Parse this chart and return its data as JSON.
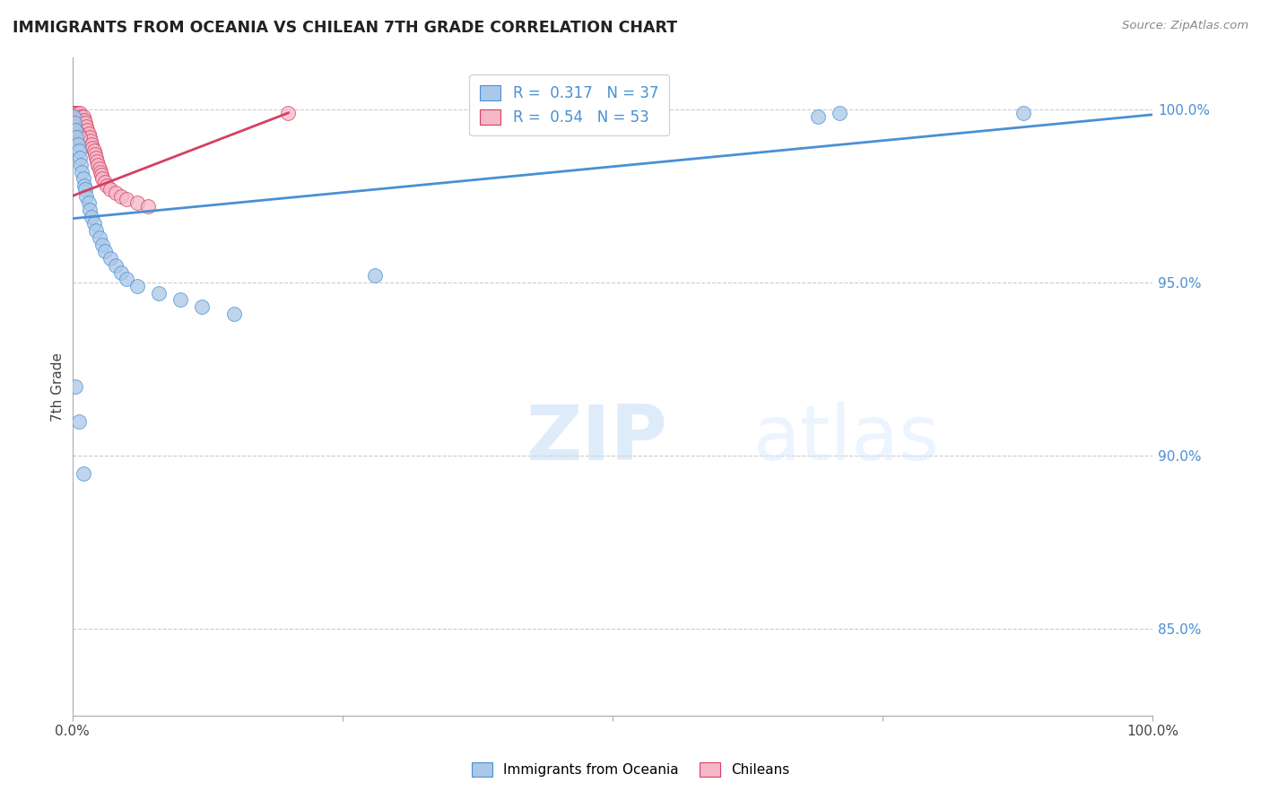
{
  "title": "IMMIGRANTS FROM OCEANIA VS CHILEAN 7TH GRADE CORRELATION CHART",
  "source": "Source: ZipAtlas.com",
  "ylabel": "7th Grade",
  "watermark_zip": "ZIP",
  "watermark_atlas": "atlas",
  "legend_label1": "Immigrants from Oceania",
  "legend_label2": "Chileans",
  "R1": 0.317,
  "N1": 37,
  "R2": 0.54,
  "N2": 53,
  "color1": "#aac8e8",
  "color2": "#f5b8c8",
  "line_color1": "#4a8fd4",
  "line_color2": "#d44060",
  "background": "#ffffff",
  "xlim": [
    0.0,
    1.0
  ],
  "ylim": [
    0.825,
    1.015
  ],
  "blue_x": [
    0.001,
    0.002,
    0.003,
    0.004,
    0.005,
    0.006,
    0.007,
    0.008,
    0.009,
    0.01,
    0.011,
    0.012,
    0.013,
    0.015,
    0.016,
    0.018,
    0.02,
    0.022,
    0.025,
    0.028,
    0.03,
    0.035,
    0.04,
    0.045,
    0.05,
    0.06,
    0.08,
    0.1,
    0.12,
    0.15,
    0.003,
    0.006,
    0.01,
    0.28,
    0.69,
    0.71,
    0.88
  ],
  "blue_y": [
    0.998,
    0.996,
    0.994,
    0.992,
    0.99,
    0.988,
    0.986,
    0.984,
    0.982,
    0.98,
    0.978,
    0.977,
    0.975,
    0.973,
    0.971,
    0.969,
    0.967,
    0.965,
    0.963,
    0.961,
    0.959,
    0.957,
    0.955,
    0.953,
    0.951,
    0.949,
    0.947,
    0.945,
    0.943,
    0.941,
    0.92,
    0.91,
    0.895,
    0.952,
    0.998,
    0.999,
    0.999
  ],
  "pink_x": [
    0.001,
    0.001,
    0.002,
    0.002,
    0.002,
    0.003,
    0.003,
    0.003,
    0.004,
    0.004,
    0.005,
    0.005,
    0.006,
    0.006,
    0.007,
    0.007,
    0.008,
    0.008,
    0.009,
    0.009,
    0.01,
    0.01,
    0.011,
    0.012,
    0.013,
    0.014,
    0.015,
    0.016,
    0.017,
    0.018,
    0.019,
    0.02,
    0.021,
    0.022,
    0.023,
    0.024,
    0.025,
    0.026,
    0.027,
    0.028,
    0.03,
    0.032,
    0.035,
    0.04,
    0.045,
    0.05,
    0.06,
    0.07,
    0.002,
    0.003,
    0.005,
    0.007,
    0.2
  ],
  "pink_y": [
    0.999,
    0.998,
    0.999,
    0.998,
    0.997,
    0.999,
    0.998,
    0.997,
    0.999,
    0.998,
    0.999,
    0.997,
    0.998,
    0.996,
    0.999,
    0.997,
    0.998,
    0.996,
    0.997,
    0.995,
    0.998,
    0.996,
    0.997,
    0.996,
    0.995,
    0.994,
    0.993,
    0.992,
    0.991,
    0.99,
    0.989,
    0.988,
    0.987,
    0.986,
    0.985,
    0.984,
    0.983,
    0.982,
    0.981,
    0.98,
    0.979,
    0.978,
    0.977,
    0.976,
    0.975,
    0.974,
    0.973,
    0.972,
    0.995,
    0.994,
    0.993,
    0.992,
    0.999
  ],
  "yticks": [
    0.85,
    0.9,
    0.95,
    1.0
  ],
  "ytick_labels": [
    "85.0%",
    "90.0%",
    "95.0%",
    "100.0%"
  ],
  "xticks": [
    0.0,
    0.25,
    0.5,
    0.75,
    1.0
  ],
  "xtick_labels": [
    "0.0%",
    "",
    "",
    "",
    "100.0%"
  ],
  "blue_line": [
    0.0,
    1.0,
    0.9685,
    0.9985
  ],
  "pink_line": [
    0.0,
    0.2,
    0.975,
    0.999
  ]
}
